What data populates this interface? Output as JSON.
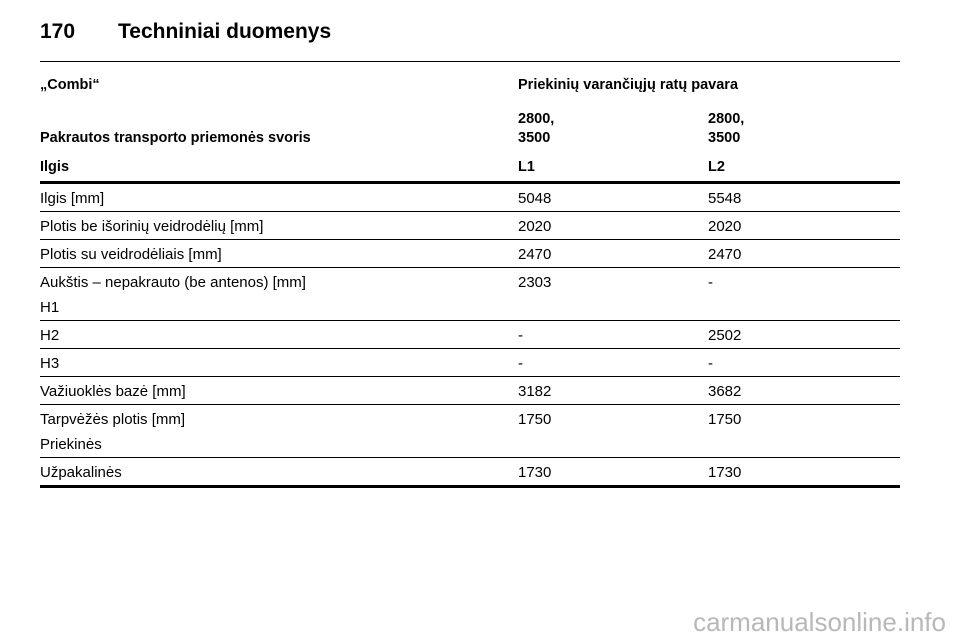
{
  "header": {
    "page_number": "170",
    "title": "Techniniai duomenys"
  },
  "table": {
    "head": [
      [
        "„Combi“",
        "Priekinių varančiųjų ratų pavara"
      ],
      [
        "Pakrautos transporto priemonės svoris",
        "2800,\n3500",
        "2800,\n3500"
      ],
      [
        "Ilgis",
        "L1",
        "L2"
      ]
    ],
    "rows": [
      [
        "Ilgis [mm]",
        "5048",
        "5548"
      ],
      [
        "Plotis be išorinių veidrodėlių [mm]",
        "2020",
        "2020"
      ],
      [
        "Plotis su veidrodėliais [mm]",
        "2470",
        "2470"
      ],
      [
        "Aukštis – nepakrauto (be antenos) [mm]\nH1",
        "2303",
        "-"
      ],
      [
        "H2",
        "-",
        "2502"
      ],
      [
        "H3",
        "-",
        "-"
      ],
      [
        "Važiuoklės bazė [mm]",
        "3182",
        "3682"
      ],
      [
        "Tarpvėžės plotis [mm]\nPriekinės",
        "1750",
        "1750"
      ],
      [
        "Užpakalinės",
        "1730",
        "1730"
      ]
    ]
  },
  "watermark": "carmanualsonline.info"
}
